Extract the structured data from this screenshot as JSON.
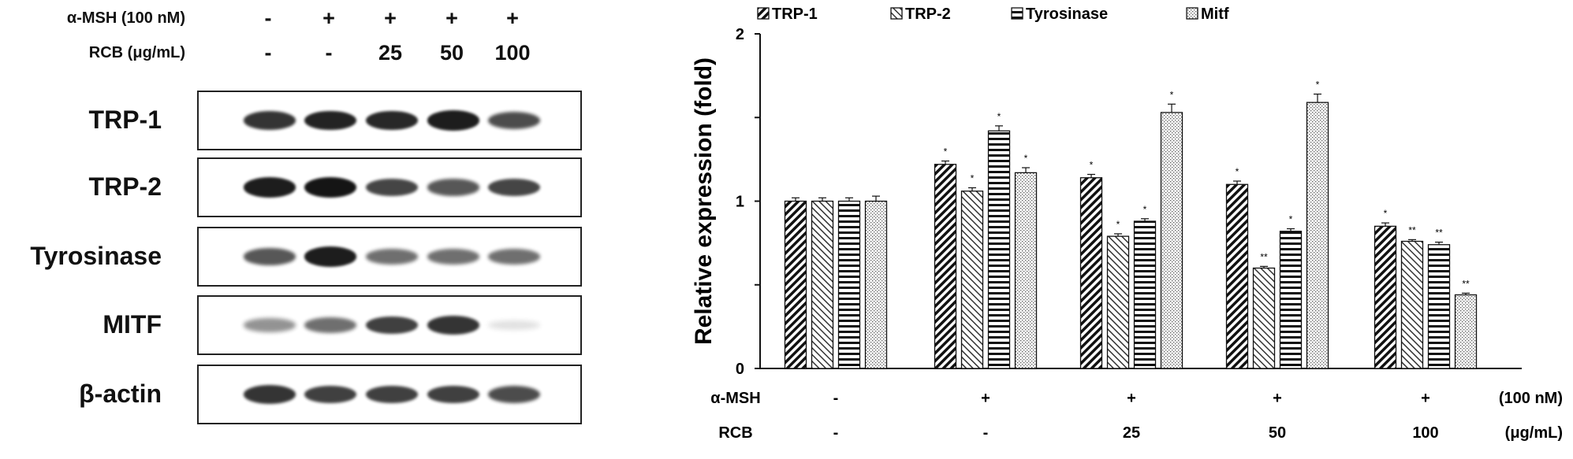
{
  "blot": {
    "rows": [
      {
        "label": "α-MSH (100 nM)",
        "values": [
          "-",
          "+",
          "+",
          "+",
          "+"
        ]
      },
      {
        "label": "RCB (μg/mL)",
        "values": [
          "-",
          "-",
          "25",
          "50",
          "100"
        ]
      }
    ],
    "bands": [
      {
        "label": "TRP-1",
        "intensity": [
          0.85,
          0.92,
          0.9,
          0.95,
          0.75
        ]
      },
      {
        "label": "TRP-2",
        "intensity": [
          0.95,
          0.98,
          0.78,
          0.7,
          0.78
        ]
      },
      {
        "label": "Tyrosinase",
        "intensity": [
          0.7,
          0.95,
          0.6,
          0.6,
          0.6
        ]
      },
      {
        "label": "MITF",
        "intensity": [
          0.45,
          0.6,
          0.8,
          0.85,
          0.12
        ]
      },
      {
        "label": "β-actin",
        "intensity": [
          0.85,
          0.8,
          0.8,
          0.8,
          0.75
        ]
      }
    ]
  },
  "chart_data": {
    "type": "bar",
    "ylabel": "Relative expression (fold)",
    "ylim": [
      0,
      2
    ],
    "yticks": [
      "0",
      "1",
      "2"
    ],
    "legend_position": "top",
    "categories": [
      "-/-",
      "+/-",
      "+/25",
      "+/50",
      "+/100"
    ],
    "condition_rows": [
      {
        "label": "α-MSH",
        "values": [
          "-",
          "+",
          "+",
          "+",
          "+"
        ],
        "unit": "(100 nM)"
      },
      {
        "label": "RCB",
        "values": [
          "-",
          "-",
          "25",
          "50",
          "100"
        ],
        "unit": "(μg/mL)"
      }
    ],
    "series": [
      {
        "name": "TRP-1",
        "values": [
          1.0,
          1.22,
          1.14,
          1.1,
          0.85
        ],
        "errors": [
          0.02,
          0.02,
          0.02,
          0.02,
          0.02
        ],
        "sig": [
          "",
          "*",
          "*",
          "*",
          "*"
        ],
        "pattern": "back-diagonal"
      },
      {
        "name": "TRP-2",
        "values": [
          1.0,
          1.06,
          0.79,
          0.6,
          0.76
        ],
        "errors": [
          0.02,
          0.02,
          0.015,
          0.01,
          0.01
        ],
        "sig": [
          "",
          "*",
          "*",
          "**",
          "**"
        ],
        "pattern": "forward-diagonal"
      },
      {
        "name": "Tyrosinase",
        "values": [
          1.0,
          1.42,
          0.88,
          0.82,
          0.74
        ],
        "errors": [
          0.02,
          0.03,
          0.015,
          0.015,
          0.015
        ],
        "sig": [
          "",
          "*",
          "*",
          "*",
          "**"
        ],
        "pattern": "horizontal"
      },
      {
        "name": "Mitf",
        "values": [
          1.0,
          1.17,
          1.53,
          1.59,
          0.44
        ],
        "errors": [
          0.03,
          0.03,
          0.05,
          0.05,
          0.01
        ],
        "sig": [
          "",
          "*",
          "*",
          "*",
          "**"
        ],
        "pattern": "dots"
      }
    ]
  }
}
